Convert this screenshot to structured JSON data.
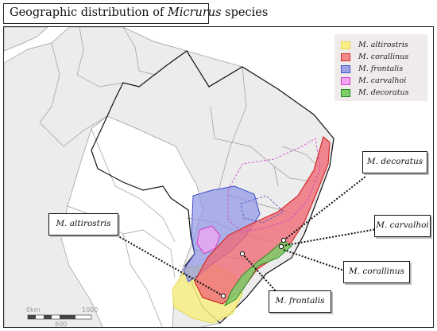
{
  "title": {
    "prefix": "Geographic distribution of ",
    "genus": "Micrurus",
    "suffix": " species"
  },
  "legend": {
    "items": [
      {
        "label": "M. altirostris",
        "fill": "#f7ee86",
        "stroke": "#e8d84a"
      },
      {
        "label": "M. corallinus",
        "fill": "#f28a8a",
        "stroke": "#d42a2a"
      },
      {
        "label": "M. frontalis",
        "fill": "#9da3e6",
        "stroke": "#4050c8"
      },
      {
        "label": "M. carvalhoi",
        "fill": "#f2a6f0",
        "stroke": "#d040c8"
      },
      {
        "label": "M. decoratus",
        "fill": "#7ccc6a",
        "stroke": "#2a8a22"
      }
    ]
  },
  "callouts": {
    "decoratus": "M. decoratus",
    "altirostris": "M. altirostris",
    "carvalhoi": "M. carvalhoi",
    "corallinus": "M. corallinus",
    "frontalis": "M. frontalis"
  },
  "scale_bar": {
    "label_0": "0km",
    "label_500": "500",
    "label_1000": "1000"
  },
  "colors": {
    "land": "#ececec",
    "border": "#9a9a9a",
    "brazil_border": "#111111"
  }
}
